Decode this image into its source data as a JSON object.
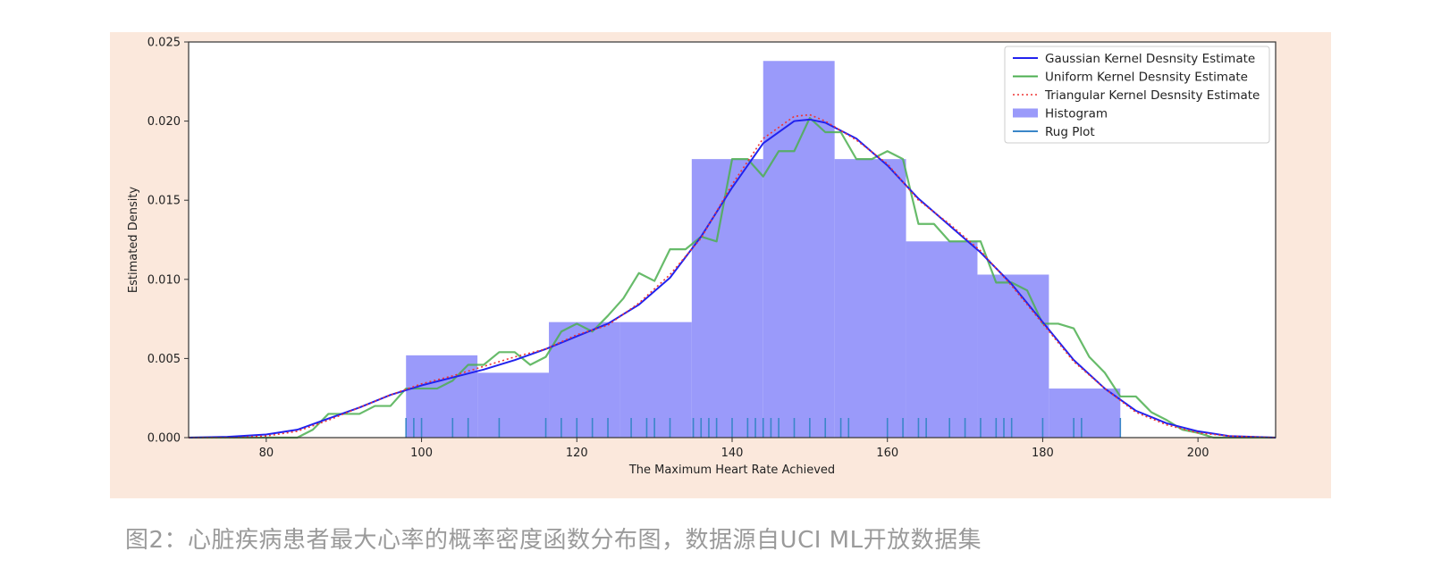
{
  "caption": "图2：心脏疾病患者最大心率的概率密度函数分布图，数据源自UCI ML开放数据集",
  "colors": {
    "figure_background": "#fbe8dc",
    "histogram": "#9a9afa",
    "gaussian": "#2222ee",
    "uniform": "#4caf50",
    "triangular": "#ee3333",
    "rug": "#3a86c8"
  },
  "chart_data": {
    "type": "area",
    "xlabel": "The Maximum Heart Rate Achieved",
    "ylabel": "Estimated Density",
    "xlim": [
      70,
      210
    ],
    "ylim": [
      0,
      0.025
    ],
    "grid": false,
    "legend_position": "top-right",
    "x_ticks": [
      {
        "value": 80,
        "label": "80"
      },
      {
        "value": 100,
        "label": "100"
      },
      {
        "value": 120,
        "label": "120"
      },
      {
        "value": 140,
        "label": "140"
      },
      {
        "value": 160,
        "label": "160"
      },
      {
        "value": 180,
        "label": "180"
      },
      {
        "value": 200,
        "label": "200"
      }
    ],
    "y_ticks": [
      {
        "value": 0,
        "label": "0.000"
      },
      {
        "value": 0.005,
        "label": "0.005"
      },
      {
        "value": 0.01,
        "label": "0.010"
      },
      {
        "value": 0.015,
        "label": "0.015"
      },
      {
        "value": 0.02,
        "label": "0.020"
      },
      {
        "value": 0.025,
        "label": "0.025"
      }
    ],
    "legend": [
      {
        "key": "gaussian",
        "label": "Gaussian Kernel Desnsity Estimate",
        "style": "solid-line"
      },
      {
        "key": "uniform",
        "label": "Uniform Kernel Desnsity Estimate",
        "style": "solid-line"
      },
      {
        "key": "triangular",
        "label": "Triangular Kernel Desnsity Estimate",
        "style": "dotted-line"
      },
      {
        "key": "histogram",
        "label": "Histogram",
        "style": "patch"
      },
      {
        "key": "rug",
        "label": "Rug Plot",
        "style": "solid-line"
      }
    ],
    "histogram": {
      "name": "Histogram",
      "bins": [
        {
          "x0": 98,
          "x1": 107.2,
          "value": 0.0052
        },
        {
          "x0": 107.2,
          "x1": 116.4,
          "value": 0.0041
        },
        {
          "x0": 116.4,
          "x1": 125.6,
          "value": 0.0073
        },
        {
          "x0": 125.6,
          "x1": 134.8,
          "value": 0.0073
        },
        {
          "x0": 134.8,
          "x1": 144,
          "value": 0.0176
        },
        {
          "x0": 144,
          "x1": 153.2,
          "value": 0.0238
        },
        {
          "x0": 153.2,
          "x1": 162.4,
          "value": 0.0176
        },
        {
          "x0": 162.4,
          "x1": 171.6,
          "value": 0.0124
        },
        {
          "x0": 171.6,
          "x1": 180.8,
          "value": 0.0103
        },
        {
          "x0": 180.8,
          "x1": 190,
          "value": 0.0031
        }
      ]
    },
    "series": [
      {
        "name": "Gaussian Kernel Desnsity Estimate",
        "key": "gaussian",
        "x": [
          70,
          75,
          80,
          84,
          88,
          92,
          96,
          100,
          104,
          108,
          112,
          116,
          120,
          124,
          128,
          132,
          136,
          140,
          144,
          148,
          150,
          152,
          156,
          160,
          164,
          168,
          172,
          176,
          180,
          184,
          188,
          192,
          196,
          200,
          204,
          210
        ],
        "y": [
          0.0,
          5e-05,
          0.0002,
          0.0005,
          0.0012,
          0.0019,
          0.0027,
          0.0033,
          0.0038,
          0.0043,
          0.0049,
          0.0056,
          0.0064,
          0.0072,
          0.0084,
          0.0101,
          0.0127,
          0.0158,
          0.0186,
          0.02,
          0.0201,
          0.0199,
          0.0189,
          0.0172,
          0.0151,
          0.0134,
          0.0117,
          0.0097,
          0.0073,
          0.0049,
          0.0031,
          0.0017,
          0.0009,
          0.0004,
          0.0001,
          0.0
        ]
      },
      {
        "name": "Uniform Kernel Desnsity Estimate",
        "key": "uniform",
        "x": [
          70,
          84,
          86,
          88,
          92,
          94,
          96,
          98,
          100,
          102,
          104,
          106,
          108,
          110,
          112,
          114,
          116,
          118,
          120,
          122,
          124,
          126,
          128,
          130,
          132,
          134,
          136,
          138,
          140,
          142,
          144,
          146,
          148,
          150,
          152,
          154,
          156,
          158,
          160,
          162,
          164,
          166,
          168,
          170,
          172,
          174,
          176,
          178,
          180,
          182,
          184,
          186,
          188,
          190,
          192,
          194,
          196,
          198,
          200,
          202,
          210
        ],
        "y": [
          0.0,
          0.0,
          0.0005,
          0.0015,
          0.0015,
          0.002,
          0.002,
          0.0031,
          0.0031,
          0.0031,
          0.0036,
          0.0046,
          0.0046,
          0.0054,
          0.0054,
          0.0046,
          0.0051,
          0.0067,
          0.0072,
          0.0067,
          0.0077,
          0.0088,
          0.0104,
          0.0099,
          0.0119,
          0.0119,
          0.0127,
          0.0124,
          0.0176,
          0.0176,
          0.0165,
          0.0181,
          0.0181,
          0.0202,
          0.0193,
          0.0193,
          0.0176,
          0.0176,
          0.0181,
          0.0176,
          0.0135,
          0.0135,
          0.0124,
          0.0124,
          0.0124,
          0.0098,
          0.0098,
          0.0093,
          0.0072,
          0.0072,
          0.0069,
          0.0051,
          0.0041,
          0.0026,
          0.0026,
          0.0016,
          0.0011,
          0.0005,
          0.0003,
          0.0,
          0.0
        ]
      },
      {
        "name": "Triangular Kernel Desnsity Estimate",
        "key": "triangular",
        "x": [
          70,
          76,
          80,
          84,
          88,
          92,
          96,
          100,
          104,
          108,
          112,
          116,
          120,
          124,
          128,
          132,
          136,
          140,
          144,
          148,
          150,
          152,
          156,
          160,
          164,
          168,
          172,
          176,
          180,
          184,
          188,
          192,
          196,
          200,
          204,
          210
        ],
        "y": [
          0.0,
          0.0,
          0.0001,
          0.0004,
          0.0011,
          0.0019,
          0.0027,
          0.0034,
          0.0039,
          0.0045,
          0.0051,
          0.0056,
          0.0065,
          0.0071,
          0.0085,
          0.0103,
          0.0126,
          0.016,
          0.0189,
          0.0203,
          0.0204,
          0.02,
          0.0188,
          0.0173,
          0.015,
          0.0135,
          0.0118,
          0.0096,
          0.0072,
          0.0048,
          0.0031,
          0.0016,
          0.0008,
          0.0003,
          0.0001,
          0.0
        ]
      }
    ],
    "rug": {
      "name": "Rug Plot",
      "x": [
        98,
        99,
        100,
        104,
        106,
        110,
        116,
        118,
        120,
        122,
        124,
        127,
        129,
        130,
        132,
        135,
        136,
        137,
        138,
        140,
        142,
        143,
        144,
        145,
        146,
        148,
        150,
        152,
        154,
        155,
        160,
        162,
        164,
        165,
        168,
        170,
        172,
        174,
        175,
        176,
        180,
        184,
        185,
        190
      ]
    }
  }
}
